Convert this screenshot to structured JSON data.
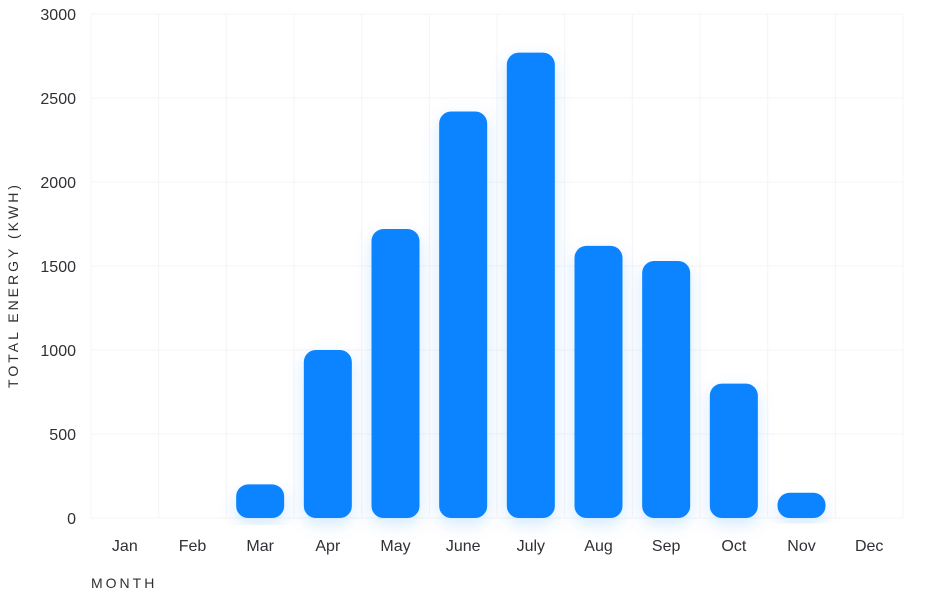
{
  "chart_data": {
    "type": "bar",
    "categories": [
      "Jan",
      "Feb",
      "Mar",
      "Apr",
      "May",
      "June",
      "July",
      "Aug",
      "Sep",
      "Oct",
      "Nov",
      "Dec"
    ],
    "values": [
      0,
      0,
      200,
      1000,
      1720,
      2420,
      2770,
      1620,
      1530,
      800,
      150,
      0
    ],
    "xlabel": "MONTH",
    "ylabel": "TOTAL ENERGY (KWH)",
    "ylim": [
      0,
      3000
    ],
    "yticks": [
      0,
      500,
      1000,
      1500,
      2000,
      2500,
      3000
    ],
    "grid": true,
    "bar_color": "#0a84ff"
  }
}
